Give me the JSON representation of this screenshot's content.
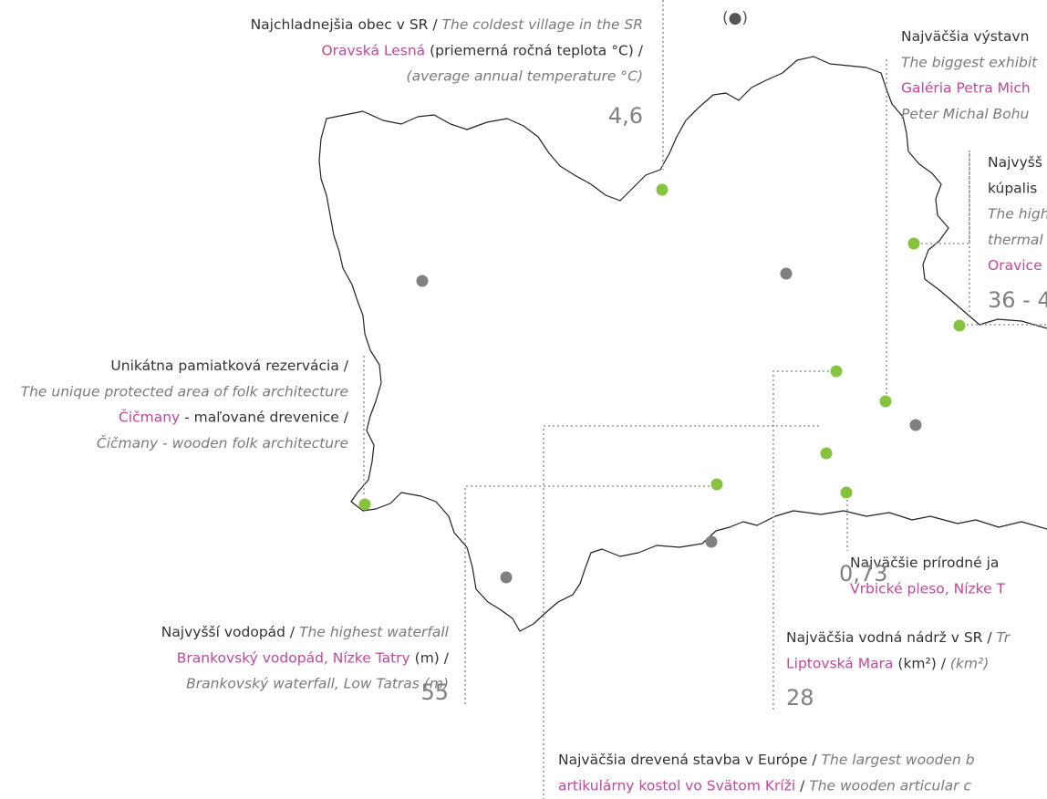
{
  "legend_symbol": "(●)",
  "annotations": [
    {
      "lines": [
        [
          {
            "text": "Najchladnejšia obec v SR / ",
            "style": "plain"
          },
          {
            "text": "The coldest village in the SR",
            "style": "italic"
          }
        ],
        [
          {
            "text": "Oravská Lesná",
            "style": "pink"
          },
          {
            "text": " (priemerná ročná teplota °C) /",
            "style": "plain"
          }
        ],
        [
          {
            "text": "(average annual temperature °C)",
            "style": "italic"
          }
        ]
      ],
      "value": "4,6"
    },
    {
      "lines": [
        [
          {
            "text": "Najväčšia výstavn",
            "style": "plain"
          }
        ],
        [
          {
            "text": "The biggest exhibit",
            "style": "italic"
          }
        ],
        [
          {
            "text": "Galéria Petra Mich",
            "style": "pink"
          }
        ],
        [
          {
            "text": "Peter Michal Bohu",
            "style": "italic"
          }
        ]
      ]
    },
    {
      "lines": [
        [
          {
            "text": "Najvyšš",
            "style": "plain"
          }
        ],
        [
          {
            "text": "kúpalis",
            "style": "plain"
          }
        ],
        [
          {
            "text": "The high",
            "style": "italic"
          }
        ],
        [
          {
            "text": "thermal",
            "style": "italic"
          }
        ],
        [
          {
            "text": "Oravice",
            "style": "pink"
          }
        ]
      ],
      "value": "36 - 4"
    },
    {
      "lines": [
        [
          {
            "text": "Unikátna pamiatková rezervácia /",
            "style": "plain"
          }
        ],
        [
          {
            "text": "The unique protected area of folk architecture",
            "style": "italic"
          }
        ],
        [
          {
            "text": "Čičmany",
            "style": "pink"
          },
          {
            "text": " - maľované drevenice /",
            "style": "plain"
          }
        ],
        [
          {
            "text": "Čičmany - wooden folk architecture",
            "style": "italic"
          }
        ]
      ]
    },
    {
      "lines": [
        [
          {
            "text": "Najvyšší vodopád / ",
            "style": "plain"
          },
          {
            "text": "The highest waterfall",
            "style": "italic"
          }
        ],
        [
          {
            "text": "Brankovský vodopád, Nízke Tatry",
            "style": "pink"
          },
          {
            "text": " (m) /",
            "style": "plain"
          }
        ],
        [
          {
            "text": "Brankovský waterfall, Low Tatras (m)",
            "style": "italic"
          }
        ]
      ],
      "value": "55"
    },
    {
      "lines": [
        [
          {
            "text": "Najväčšie prírodné ja",
            "style": "plain"
          }
        ],
        [
          {
            "text": "Vrbické pleso, Nízke T",
            "style": "pink"
          }
        ]
      ],
      "value": "0,73"
    },
    {
      "lines": [
        [
          {
            "text": "Najväčšia vodná nádrž v SR / ",
            "style": "plain"
          },
          {
            "text": "Tr",
            "style": "italic"
          }
        ],
        [
          {
            "text": "Liptovská Mara",
            "style": "pink"
          },
          {
            "text": " (km²) / ",
            "style": "plain"
          },
          {
            "text": "(km²)",
            "style": "italic"
          }
        ]
      ],
      "value": "28"
    },
    {
      "lines": [
        [
          {
            "text": "Najväčšia drevená stavba v Európe / ",
            "style": "plain"
          },
          {
            "text": "The largest wooden b",
            "style": "italic"
          }
        ],
        [
          {
            "text": "artikulárny kostol vo Svätom Kríži",
            "style": "pink"
          },
          {
            "text": " / ",
            "style": "plain"
          },
          {
            "text": "The wooden articular c",
            "style": "italic"
          }
        ]
      ]
    }
  ]
}
